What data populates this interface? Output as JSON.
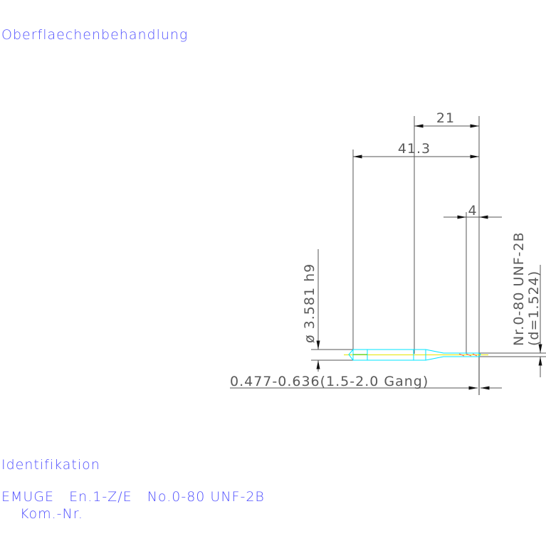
{
  "colors": {
    "label_text": "#5050ff",
    "dimension": "#555555",
    "part_outline": "#00e5ff",
    "centerline": "#e6e600"
  },
  "labels": {
    "surface_treatment": "Oberflaechenbehandlung",
    "identification": "Identifikation",
    "identification_line": "EMUGE   En.1-Z/E   No.0-80 UNF-2B",
    "commission_number": "Kom.-Nr."
  },
  "dimensions": {
    "length_21": "21",
    "total_length": "41.3",
    "thread_length": "4",
    "shank_diameter": "ø 3.581 h9",
    "thread_spec": "Nr.0-80 UNF-2B",
    "thread_diameter": "(d=1.524)",
    "chamfer": "0.477-0.636(1.5-2.0 Gang)"
  }
}
